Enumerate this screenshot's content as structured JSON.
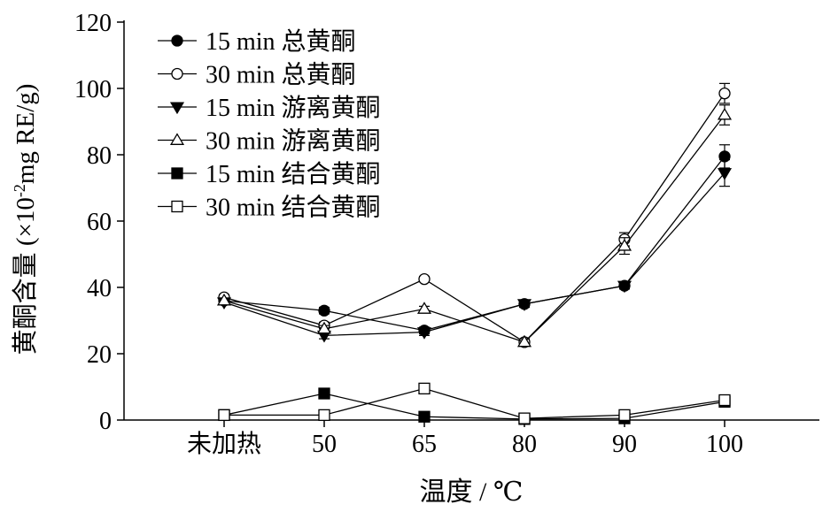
{
  "chart_data": {
    "type": "line",
    "categories": [
      "未加热",
      "50",
      "65",
      "80",
      "90",
      "100"
    ],
    "xlabel": "温度 / ℃",
    "ylabel": "黄酮含量 (×10-2mg RE/g)",
    "ylabel_parts": {
      "main": "黄酮含量 (×10",
      "sup": "-2",
      "rest": "mg RE/g)"
    },
    "ylim": [
      0,
      120
    ],
    "yticks": [
      0,
      20,
      40,
      60,
      80,
      100,
      120
    ],
    "legend_position": "top-left",
    "grid": false,
    "series": [
      {
        "name": "15 min 总黄酮",
        "marker": "circle",
        "filled": true,
        "values": [
          36,
          33,
          27,
          35,
          40.5,
          79.5
        ],
        "errors": [
          0.8,
          1.0,
          1.0,
          1.0,
          1.0,
          3.5
        ]
      },
      {
        "name": "30 min 总黄酮",
        "marker": "circle",
        "filled": false,
        "values": [
          37,
          28.5,
          42.5,
          23.5,
          54.5,
          98.5
        ],
        "errors": [
          0.8,
          1.0,
          0.8,
          1.0,
          2.0,
          3.0
        ]
      },
      {
        "name": "15 min 游离黄酮",
        "marker": "triangle-down",
        "filled": true,
        "values": [
          35.5,
          25.5,
          26.5,
          35,
          40.5,
          74.5
        ],
        "errors": [
          0.8,
          1.0,
          1.0,
          1.0,
          1.0,
          4.0
        ]
      },
      {
        "name": "30 min 游离黄酮",
        "marker": "triangle-up",
        "filled": false,
        "values": [
          36,
          27.5,
          33.5,
          23.5,
          52.5,
          92
        ],
        "errors": [
          0.8,
          1.0,
          0.8,
          1.0,
          2.5,
          3.0
        ]
      },
      {
        "name": "15 min 结合黄酮",
        "marker": "square",
        "filled": true,
        "values": [
          1.5,
          8,
          1,
          0.3,
          0.5,
          5.5
        ],
        "errors": [
          0,
          0,
          0,
          0,
          0,
          0
        ]
      },
      {
        "name": "30 min 结合黄酮",
        "marker": "square",
        "filled": false,
        "values": [
          1.5,
          1.5,
          9.5,
          0.5,
          1.5,
          6
        ],
        "errors": [
          0,
          0,
          0,
          0,
          0,
          0
        ]
      }
    ]
  }
}
